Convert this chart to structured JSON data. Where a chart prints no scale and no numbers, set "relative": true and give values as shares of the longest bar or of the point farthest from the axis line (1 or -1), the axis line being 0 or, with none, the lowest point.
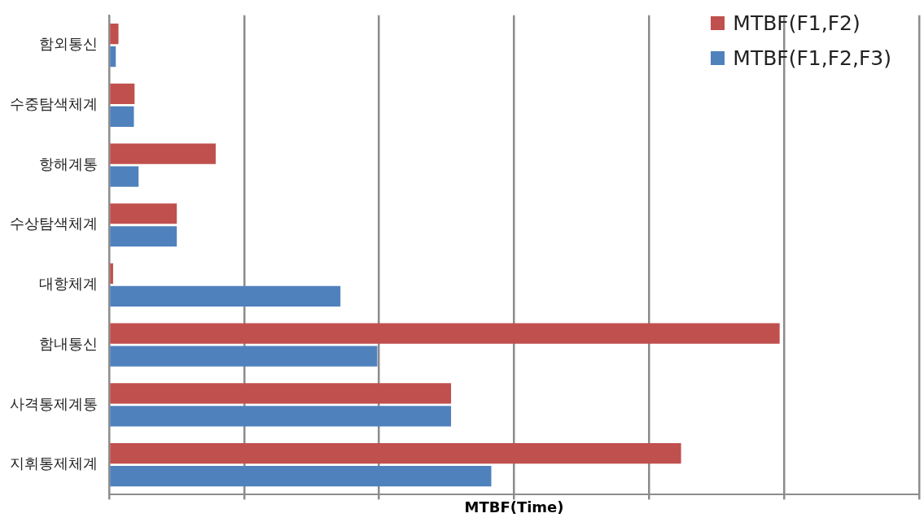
{
  "chart_data": {
    "type": "bar",
    "orientation": "horizontal",
    "relative": true,
    "xlabel": "MTBF(Time)",
    "categories": [
      "함외통신",
      "수중탐색체계",
      "항해계통",
      "수상탐색체계",
      "대항체계",
      "함내통신",
      "사격통제계통",
      "지휘통제체계"
    ],
    "series": [
      {
        "name": "MTBF(F1,F2)",
        "color": "#c0504d",
        "values": [
          0.014,
          0.038,
          0.159,
          0.101,
          0.006,
          1,
          0.51,
          0.853
        ]
      },
      {
        "name": "MTBF(F1,F2,F3)",
        "color": "#4f81bd",
        "values": [
          0.01,
          0.037,
          0.044,
          0.101,
          0.345,
          0.4,
          0.51,
          0.57
        ]
      }
    ],
    "grid": "x",
    "legend": "top right"
  }
}
